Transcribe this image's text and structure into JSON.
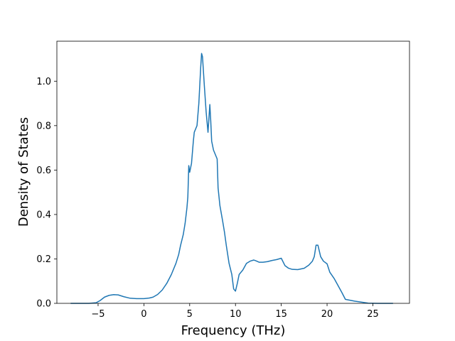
{
  "chart_data": {
    "type": "line",
    "title": "",
    "xlabel": "Frequency (THz)",
    "ylabel": "Density of States",
    "xlim": [
      -9.5,
      29.0
    ],
    "ylim": [
      0.0,
      1.18
    ],
    "xticks": [
      -5,
      0,
      5,
      10,
      15,
      20,
      25
    ],
    "xtick_labels": [
      "−5",
      "0",
      "5",
      "10",
      "15",
      "20",
      "25"
    ],
    "yticks": [
      0.0,
      0.2,
      0.4,
      0.6,
      0.8,
      1.0
    ],
    "ytick_labels": [
      "0.0",
      "0.2",
      "0.4",
      "0.6",
      "0.8",
      "1.0"
    ],
    "grid": false,
    "legend": "none",
    "line_color": "#1f77b4",
    "series": [
      {
        "x": [
          -8.0,
          -6.0,
          -5.2,
          -4.8,
          -4.3,
          -3.8,
          -3.3,
          -2.8,
          -2.2,
          -1.5,
          -0.8,
          0.0,
          0.6,
          1.0,
          1.5,
          2.0,
          2.5,
          3.0,
          3.5,
          3.8,
          4.0,
          4.3,
          4.5,
          4.7,
          4.8,
          4.9,
          5.0,
          5.2,
          5.4,
          5.5,
          5.6,
          5.8,
          6.0,
          6.2,
          6.3,
          6.4,
          6.6,
          6.8,
          7.0,
          7.2,
          7.3,
          7.4,
          7.6,
          8.0,
          8.1,
          8.3,
          8.6,
          8.8,
          9.0,
          9.3,
          9.6,
          9.8,
          10.0,
          10.2,
          10.4,
          10.8,
          11.2,
          11.6,
          12.0,
          12.2,
          12.6,
          13.0,
          13.5,
          14.0,
          14.5,
          15.0,
          15.4,
          15.8,
          16.2,
          16.8,
          17.5,
          18.0,
          18.4,
          18.6,
          18.8,
          19.0,
          19.3,
          19.6,
          20.0,
          20.3,
          20.8,
          21.2,
          21.6,
          22.0,
          23.0,
          24.0,
          24.5,
          25.5,
          27.2
        ],
        "y": [
          0.0,
          0.0,
          0.003,
          0.012,
          0.028,
          0.036,
          0.039,
          0.038,
          0.03,
          0.023,
          0.021,
          0.021,
          0.024,
          0.028,
          0.04,
          0.06,
          0.09,
          0.13,
          0.18,
          0.22,
          0.26,
          0.31,
          0.36,
          0.43,
          0.48,
          0.62,
          0.59,
          0.63,
          0.73,
          0.77,
          0.78,
          0.8,
          0.9,
          1.06,
          1.125,
          1.11,
          0.98,
          0.86,
          0.77,
          0.895,
          0.82,
          0.73,
          0.69,
          0.65,
          0.52,
          0.44,
          0.37,
          0.32,
          0.26,
          0.18,
          0.13,
          0.065,
          0.055,
          0.09,
          0.13,
          0.15,
          0.18,
          0.19,
          0.195,
          0.192,
          0.185,
          0.185,
          0.188,
          0.193,
          0.197,
          0.203,
          0.17,
          0.158,
          0.153,
          0.152,
          0.158,
          0.172,
          0.19,
          0.21,
          0.262,
          0.262,
          0.21,
          0.19,
          0.178,
          0.14,
          0.11,
          0.08,
          0.05,
          0.018,
          0.01,
          0.004,
          0.001,
          0.0,
          0.0
        ]
      }
    ]
  }
}
